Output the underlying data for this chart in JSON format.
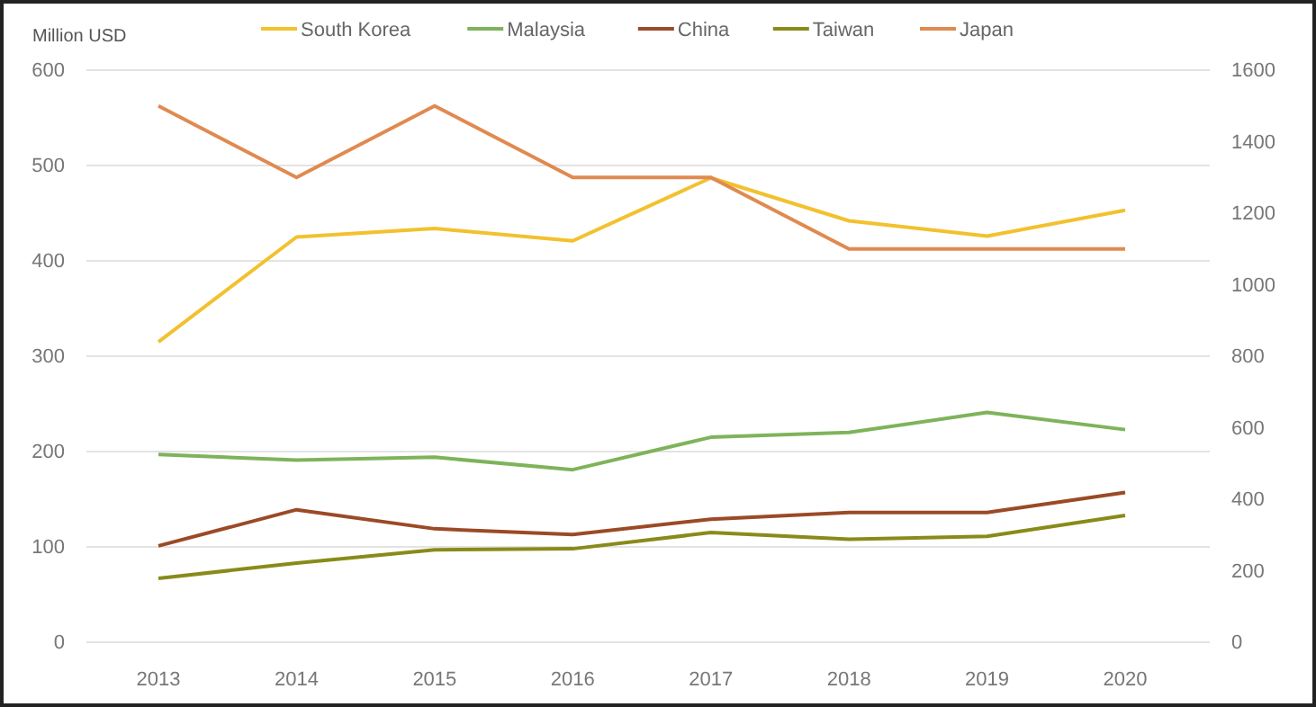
{
  "chart_data": {
    "type": "line",
    "ylabel": "Million USD",
    "categories": [
      "2013",
      "2014",
      "2015",
      "2016",
      "2017",
      "2018",
      "2019",
      "2020"
    ],
    "series": [
      {
        "name": "South Korea",
        "color": "#f2c12e",
        "values": [
          315,
          425,
          434,
          421,
          487,
          442,
          426,
          453
        ]
      },
      {
        "name": "Malaysia",
        "color": "#7fb35a",
        "values": [
          197,
          191,
          194,
          181,
          215,
          220,
          241,
          223
        ]
      },
      {
        "name": "China",
        "color": "#9b4a26",
        "values": [
          101,
          139,
          119,
          113,
          129,
          136,
          136,
          157
        ]
      },
      {
        "name": "Taiwan",
        "color": "#8a8a1a",
        "values": [
          67,
          83,
          97,
          98,
          115,
          108,
          111,
          133
        ]
      },
      {
        "name": "Japan",
        "color": "#e08a50",
        "axis": "y2",
        "values": [
          1500,
          1300,
          1500,
          1300,
          1300,
          1100,
          1100,
          1100
        ]
      }
    ],
    "ylim": [
      0,
      600
    ],
    "yticks": [
      0,
      100,
      200,
      300,
      400,
      500,
      600
    ],
    "y2lim": [
      0,
      1600
    ],
    "y2ticks": [
      0,
      200,
      400,
      600,
      800,
      1000,
      1200,
      1400,
      1600
    ],
    "grid": "y",
    "legend": "top",
    "marker": "none",
    "line_style": "solid"
  }
}
